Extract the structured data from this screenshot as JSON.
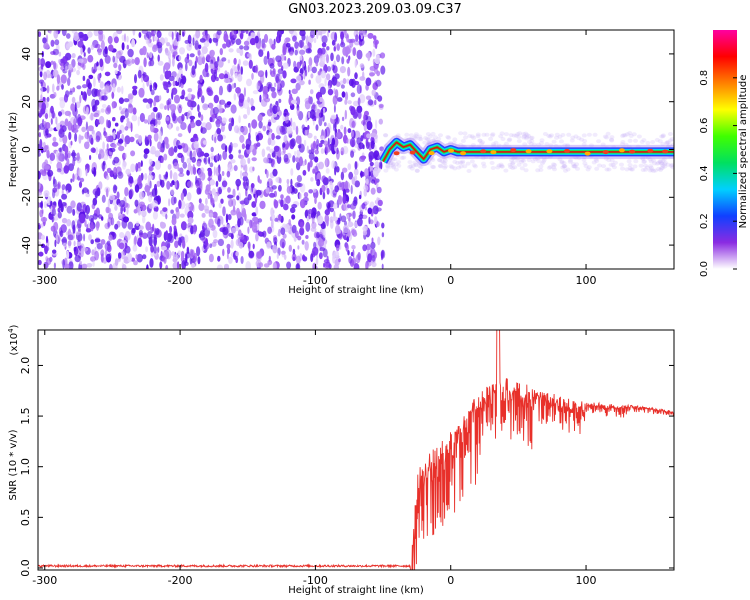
{
  "title": "GN03.2023.209.03.09.C37",
  "chart_data": [
    {
      "type": "heatmap",
      "name": "spectrogram",
      "xlabel": "Height of straight line (km)",
      "ylabel": "Frequency (Hz)",
      "xlim": [
        -305,
        165
      ],
      "ylim": [
        -50,
        50
      ],
      "x_ticks": [
        -300,
        -200,
        -100,
        0,
        100
      ],
      "y_ticks": [
        -40,
        -20,
        0,
        20,
        40
      ],
      "noise_region": [
        -305,
        -50
      ],
      "signal_line": [
        [
          -50,
          -5
        ],
        [
          -45,
          0
        ],
        [
          -40,
          3
        ],
        [
          -35,
          1
        ],
        [
          -30,
          2
        ],
        [
          -25,
          -1
        ],
        [
          -20,
          -4
        ],
        [
          -15,
          0
        ],
        [
          -10,
          1
        ],
        [
          -5,
          -1
        ],
        [
          0,
          0
        ],
        [
          5,
          -1
        ],
        [
          10,
          -1
        ],
        [
          20,
          -1
        ],
        [
          30,
          -1
        ],
        [
          40,
          -1
        ],
        [
          60,
          -1
        ],
        [
          80,
          -1
        ],
        [
          100,
          -1
        ],
        [
          120,
          -1
        ],
        [
          140,
          -1
        ],
        [
          165,
          -1
        ]
      ],
      "colorbar": {
        "label": "Normalized spectral amplitude",
        "range": [
          0.0,
          1.0
        ],
        "ticks": [
          "0.0",
          "0.2",
          "0.4",
          "0.6",
          "0.8"
        ],
        "colors": [
          "#ffffff",
          "#8a2be2",
          "#1040ff",
          "#00d0ff",
          "#00e060",
          "#40ff00",
          "#ffff00",
          "#ff8000",
          "#ff0000",
          "#ff00a0"
        ]
      }
    },
    {
      "type": "line",
      "name": "snr",
      "xlabel": "Height of straight line (km)",
      "ylabel": "SNR (10 * v/v)",
      "scale_label": "(x10",
      "scale_exp": "4",
      "xlim": [
        -305,
        165
      ],
      "ylim": [
        -0.02,
        2.35
      ],
      "x_ticks": [
        -300,
        -200,
        -100,
        0,
        100
      ],
      "y_ticks": [
        "0.0",
        "0.5",
        "1.0",
        "1.5",
        "2.0"
      ],
      "color": "#e8302a",
      "envelope": [
        [
          -305,
          0.02
        ],
        [
          -30,
          0.02
        ],
        [
          -28,
          0.3
        ],
        [
          -25,
          0.9
        ],
        [
          -22,
          1.05
        ],
        [
          -15,
          1.15
        ],
        [
          -8,
          1.25
        ],
        [
          0,
          1.35
        ],
        [
          10,
          1.55
        ],
        [
          20,
          1.72
        ],
        [
          30,
          1.85
        ],
        [
          40,
          1.88
        ],
        [
          55,
          1.82
        ],
        [
          70,
          1.75
        ],
        [
          85,
          1.68
        ],
        [
          100,
          1.64
        ],
        [
          120,
          1.62
        ],
        [
          140,
          1.6
        ],
        [
          165,
          1.55
        ]
      ],
      "peak": [
        35,
        2.35
      ]
    }
  ]
}
